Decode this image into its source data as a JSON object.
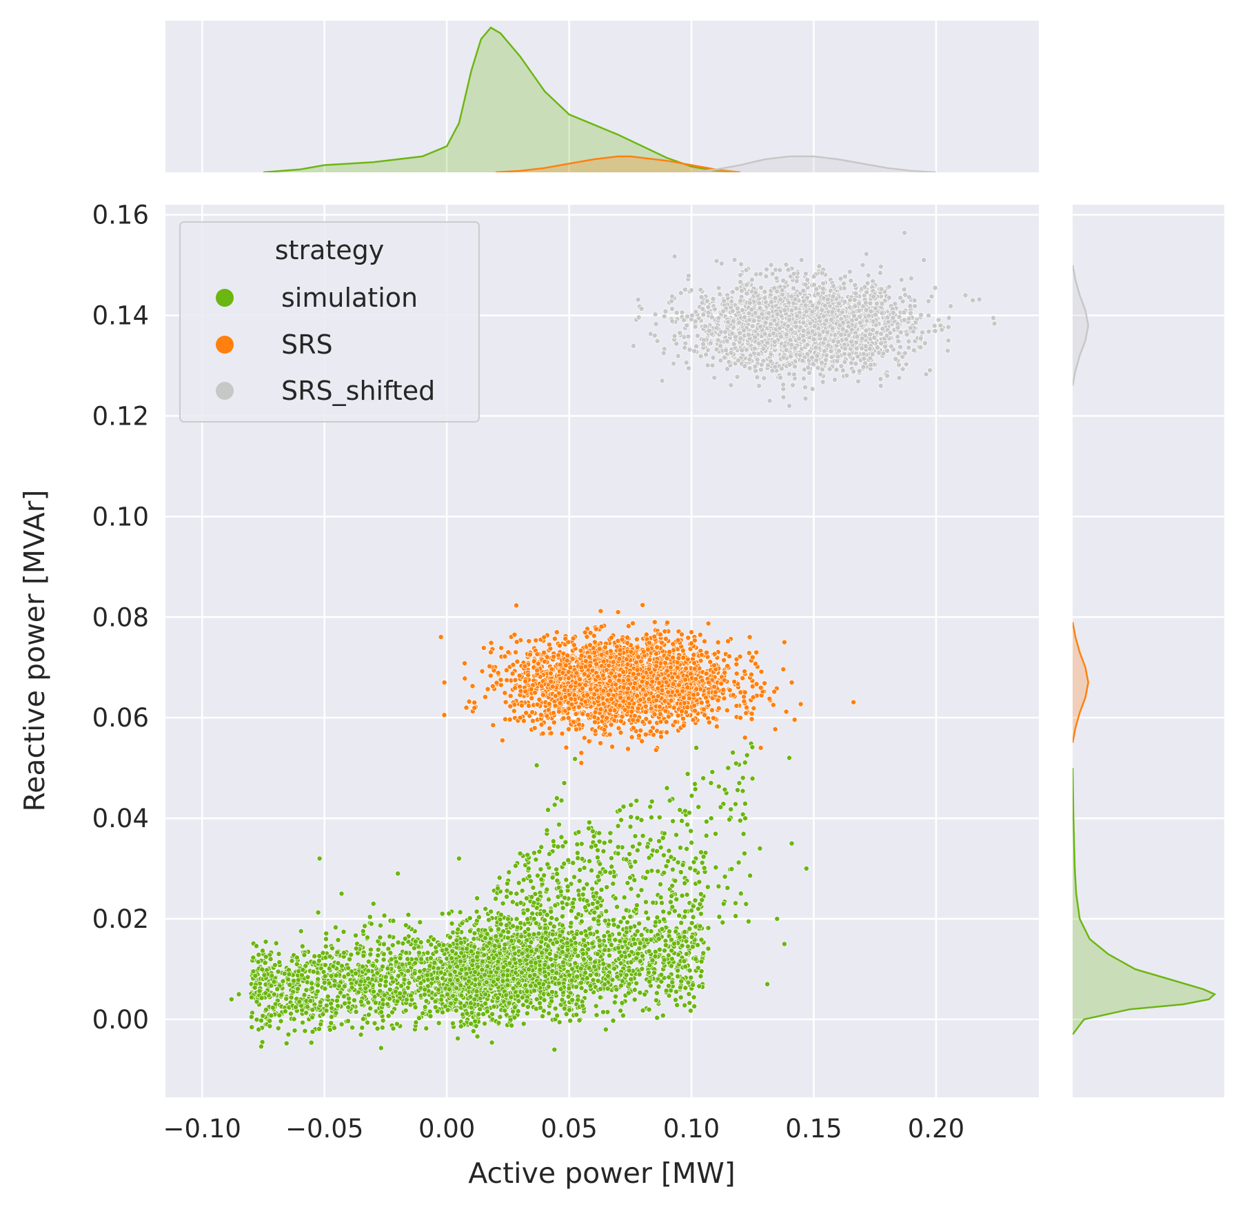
{
  "chart_data": {
    "type": "scatter",
    "subtype": "jointplot-scatter-with-marginal-kde",
    "xlabel": "Active power [MW]",
    "ylabel": "Reactive power [MVAr]",
    "xlim": [
      -0.115,
      0.242
    ],
    "ylim": [
      -0.0155,
      0.162
    ],
    "x_ticks": [
      -0.1,
      -0.05,
      0.0,
      0.05,
      0.1,
      0.15,
      0.2
    ],
    "x_tick_labels": [
      "−0.10",
      "−0.05",
      "0.00",
      "0.05",
      "0.10",
      "0.15",
      "0.20"
    ],
    "y_ticks": [
      0.0,
      0.02,
      0.04,
      0.06,
      0.08,
      0.1,
      0.12,
      0.14,
      0.16
    ],
    "y_tick_labels": [
      "0.00",
      "0.02",
      "0.04",
      "0.06",
      "0.08",
      "0.10",
      "0.12",
      "0.14",
      "0.16"
    ],
    "grid": true,
    "background": "#eaeaf2",
    "legend": {
      "title": "strategy",
      "placement": "top-left",
      "entries": [
        "simulation",
        "SRS",
        "SRS_shifted"
      ]
    },
    "series": [
      {
        "name": "simulation",
        "color": "#6bb610",
        "point_count_approx": 20000,
        "x_range": [
          -0.088,
          0.147
        ],
        "y_range": [
          -0.006,
          0.054
        ],
        "center": [
          0.03,
          0.009
        ],
        "sample_points": [
          [
            -0.088,
            0.004
          ],
          [
            -0.085,
            0.005
          ],
          [
            -0.072,
            0.012
          ],
          [
            -0.052,
            0.032
          ],
          [
            -0.043,
            0.025
          ],
          [
            -0.03,
            0.023
          ],
          [
            -0.02,
            0.029
          ],
          [
            0.005,
            0.032
          ],
          [
            0.03,
            0.033
          ],
          [
            0.02,
            0.024
          ],
          [
            0.045,
            0.044
          ],
          [
            0.048,
            0.047
          ],
          [
            0.058,
            0.038
          ],
          [
            0.07,
            0.033
          ],
          [
            0.09,
            0.046
          ],
          [
            0.102,
            0.054
          ],
          [
            0.108,
            0.047
          ],
          [
            0.115,
            0.05
          ],
          [
            0.122,
            0.04
          ],
          [
            0.128,
            0.034
          ],
          [
            0.135,
            0.02
          ],
          [
            0.138,
            0.015
          ],
          [
            0.14,
            0.052
          ],
          [
            0.141,
            0.035
          ],
          [
            0.147,
            0.03
          ],
          [
            0.044,
            -0.006
          ],
          [
            0.065,
            -0.002
          ],
          [
            0.131,
            0.007
          ]
        ]
      },
      {
        "name": "SRS",
        "color": "#ff800e",
        "point_count_approx": 8000,
        "x_range": [
          -0.001,
          0.141
        ],
        "y_range": [
          0.051,
          0.081
        ],
        "center": [
          0.072,
          0.067
        ],
        "sample_points": [
          [
            -0.001,
            0.067
          ],
          [
            0.008,
            0.062
          ],
          [
            0.018,
            0.073
          ],
          [
            0.045,
            0.077
          ],
          [
            0.07,
            0.081
          ],
          [
            0.085,
            0.079
          ],
          [
            0.1,
            0.077
          ],
          [
            0.125,
            0.072
          ],
          [
            0.138,
            0.075
          ],
          [
            0.141,
            0.067
          ],
          [
            0.055,
            0.053
          ],
          [
            0.055,
            0.051
          ],
          [
            0.03,
            0.06
          ],
          [
            0.12,
            0.06
          ]
        ]
      },
      {
        "name": "SRS_shifted",
        "color": "#c7c7c7",
        "point_count_approx": 8000,
        "x_range": [
          0.085,
          0.215
        ],
        "y_range": [
          0.122,
          0.152
        ],
        "center": [
          0.145,
          0.138
        ],
        "sample_points": [
          [
            0.085,
            0.136
          ],
          [
            0.088,
            0.127
          ],
          [
            0.1,
            0.145
          ],
          [
            0.12,
            0.148
          ],
          [
            0.145,
            0.151
          ],
          [
            0.17,
            0.15
          ],
          [
            0.195,
            0.151
          ],
          [
            0.212,
            0.144
          ],
          [
            0.215,
            0.143
          ],
          [
            0.205,
            0.135
          ],
          [
            0.14,
            0.122
          ],
          [
            0.132,
            0.123
          ],
          [
            0.18,
            0.128
          ]
        ]
      }
    ],
    "marginal_x_kde": [
      {
        "name": "simulation",
        "x": [
          -0.075,
          -0.06,
          -0.05,
          -0.03,
          -0.01,
          0.0,
          0.005,
          0.01,
          0.014,
          0.018,
          0.022,
          0.03,
          0.04,
          0.05,
          0.06,
          0.07,
          0.08,
          0.09,
          0.1,
          0.11,
          0.12
        ],
        "density": [
          0.0,
          0.02,
          0.05,
          0.07,
          0.11,
          0.18,
          0.34,
          0.7,
          0.92,
          1.0,
          0.96,
          0.8,
          0.56,
          0.4,
          0.33,
          0.26,
          0.18,
          0.1,
          0.04,
          0.01,
          0.0
        ]
      },
      {
        "name": "SRS",
        "x": [
          0.02,
          0.03,
          0.04,
          0.05,
          0.06,
          0.07,
          0.075,
          0.08,
          0.09,
          0.1,
          0.11,
          0.12
        ],
        "density": [
          0.0,
          0.01,
          0.03,
          0.06,
          0.09,
          0.11,
          0.11,
          0.1,
          0.08,
          0.05,
          0.02,
          0.0
        ]
      },
      {
        "name": "SRS_shifted",
        "x": [
          0.1,
          0.11,
          0.12,
          0.13,
          0.14,
          0.145,
          0.15,
          0.16,
          0.17,
          0.18,
          0.19,
          0.2
        ],
        "density": [
          0.0,
          0.02,
          0.05,
          0.09,
          0.11,
          0.11,
          0.11,
          0.09,
          0.06,
          0.03,
          0.01,
          0.0
        ]
      }
    ],
    "marginal_y_kde": [
      {
        "name": "simulation",
        "y": [
          -0.003,
          0.0,
          0.002,
          0.003,
          0.004,
          0.005,
          0.006,
          0.008,
          0.01,
          0.013,
          0.016,
          0.02,
          0.025,
          0.03,
          0.04,
          0.05
        ],
        "density": [
          0.0,
          0.08,
          0.4,
          0.78,
          0.96,
          1.0,
          0.92,
          0.68,
          0.44,
          0.25,
          0.12,
          0.05,
          0.025,
          0.015,
          0.006,
          0.0
        ]
      },
      {
        "name": "SRS",
        "y": [
          0.055,
          0.058,
          0.061,
          0.064,
          0.067,
          0.07,
          0.073,
          0.076,
          0.079
        ],
        "density": [
          0.0,
          0.02,
          0.05,
          0.09,
          0.11,
          0.09,
          0.05,
          0.02,
          0.0
        ]
      },
      {
        "name": "SRS_shifted",
        "y": [
          0.126,
          0.129,
          0.132,
          0.135,
          0.138,
          0.141,
          0.144,
          0.147,
          0.15
        ],
        "density": [
          0.0,
          0.02,
          0.05,
          0.09,
          0.11,
          0.09,
          0.05,
          0.02,
          0.0
        ]
      }
    ]
  }
}
